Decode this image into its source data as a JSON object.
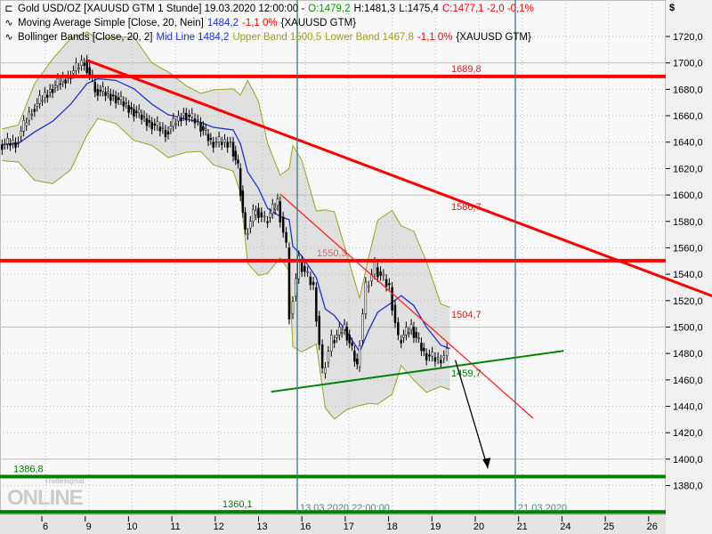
{
  "legend": {
    "line1": {
      "icon": "candle-icon",
      "name": "Gold USD/OZ [XAUUSD GTM  1 Stunde] 19.03.2020 12:00:00 -",
      "open": "O:1479,2",
      "high": "H:1481,3",
      "low": "L:1475,4",
      "close": "C:1477,1 -2,0 -0,1%"
    },
    "line2": {
      "icon": "indicator-icon",
      "name": "Moving Average Simple [Close, 20, Nein]",
      "value": "1484,2",
      "change": "-1,1 0%",
      "symbol": "{XAUUSD GTM}"
    },
    "line3": {
      "icon": "indicator-icon",
      "name": "Bollinger Bands [Close, 20, 2]",
      "mid": "Mid Line 1484,2",
      "upper": "Upper Band 1500,5",
      "lower": "Lower Band 1467,8",
      "change": "-1,1 0%",
      "symbol": "{XAUUSD GTM}"
    }
  },
  "currency": "$",
  "watermark": {
    "brand": "Tradesignal",
    "logo": "ONLINE"
  },
  "colors": {
    "price": "#000000",
    "ma": "#2030d0",
    "bands": "#a0a020",
    "resistance": "#ff0000",
    "support": "#008000",
    "trend": "#ff3030"
  },
  "chart_data": {
    "type": "line",
    "title": "",
    "ylim": [
      1360,
      1730
    ],
    "y_ticks": [
      1380,
      1400,
      1420,
      1440,
      1460,
      1480,
      1500,
      1520,
      1540,
      1560,
      1580,
      1600,
      1620,
      1640,
      1660,
      1680,
      1700,
      1720
    ],
    "y_tick_labels": [
      "1380,0",
      "1400,0",
      "1420,0",
      "1440,0",
      "1460,0",
      "1480,0",
      "1500,0",
      "1520,0",
      "1540,0",
      "1560,0",
      "1580,0",
      "1600,0",
      "1620,0",
      "1640,0",
      "1660,0",
      "1680,0",
      "1700,0",
      "1720,0"
    ],
    "days": [
      "03-06",
      "03-09",
      "03-10",
      "03-11",
      "03-12",
      "03-13",
      "03-16",
      "03-17",
      "03-18",
      "03-19",
      "03-20",
      "03-21",
      "03-24",
      "03-25",
      "03-26"
    ],
    "x_tick_labels": [
      "6",
      "9",
      "10",
      "11",
      "12",
      "13",
      "16",
      "17",
      "18",
      "19",
      "20",
      "21",
      "24",
      "25",
      "26"
    ],
    "grid": true,
    "series": [
      {
        "name": "Gold USD/OZ",
        "points": [
          [
            "03-05 00",
            1638
          ],
          [
            "03-05 09",
            1640
          ],
          [
            "03-05 18",
            1665
          ],
          [
            "03-06 04",
            1680
          ],
          [
            "03-06 14",
            1690
          ],
          [
            "03-06 23",
            1702
          ],
          [
            "03-09 05",
            1680
          ],
          [
            "03-09 15",
            1675
          ],
          [
            "03-10 01",
            1665
          ],
          [
            "03-10 11",
            1655
          ],
          [
            "03-10 20",
            1648
          ],
          [
            "03-11 06",
            1662
          ],
          [
            "03-11 14",
            1655
          ],
          [
            "03-11 21",
            1640
          ],
          [
            "03-12 08",
            1640
          ],
          [
            "03-12 12",
            1620
          ],
          [
            "03-12 16",
            1570
          ],
          [
            "03-12 22",
            1590
          ],
          [
            "03-13 03",
            1580
          ],
          [
            "03-13 10",
            1595
          ],
          [
            "03-13 15",
            1560
          ],
          [
            "03-13 17",
            1510
          ],
          [
            "03-13 22",
            1550
          ],
          [
            "03-16 06",
            1530
          ],
          [
            "03-16 11",
            1465
          ],
          [
            "03-16 16",
            1490
          ],
          [
            "03-16 23",
            1500
          ],
          [
            "03-17 06",
            1470
          ],
          [
            "03-17 11",
            1530
          ],
          [
            "03-17 16",
            1545
          ],
          [
            "03-18 00",
            1530
          ],
          [
            "03-18 05",
            1490
          ],
          [
            "03-18 12",
            1500
          ],
          [
            "03-18 19",
            1480
          ],
          [
            "03-19 03",
            1475
          ],
          [
            "03-19 08",
            1480
          ]
        ]
      }
    ],
    "horizontal_lines": [
      {
        "value": 1689.8,
        "label": "1689,8",
        "color": "#ff0000"
      },
      {
        "value": 1550.3,
        "label": "1550,3",
        "color": "#ff0000"
      },
      {
        "value": 1386.8,
        "label": "1386,8",
        "color": "#008000"
      },
      {
        "value": 1360.1,
        "label": "1360,1",
        "color": "#008000"
      }
    ],
    "trend_lines": [
      {
        "from": [
          "03-06 23",
          1702
        ],
        "to": [
          "03-27 20",
          1518
        ],
        "label": "1586,7",
        "color": "#ff0000",
        "width": 3
      },
      {
        "from": [
          "03-13 10",
          1600.7
        ],
        "to": [
          "03-23 06",
          1431
        ],
        "label": "1504,7",
        "color": "#ff2020",
        "width": 1.3
      },
      {
        "from": [
          "03-13 05",
          1451
        ],
        "to": [
          "03-23 23",
          1482
        ],
        "label": "1459,7",
        "color": "#008000",
        "width": 2
      }
    ],
    "arrow": {
      "from": [
        "03-19 11",
        1475
      ],
      "to": [
        "03-20 05",
        1393
      ]
    },
    "vertical_lines": [
      {
        "at": "03-13 22",
        "label": "13.03.2020 22:00:00"
      },
      {
        "at": "03-21 00",
        "label": "21.03.2020"
      }
    ]
  }
}
